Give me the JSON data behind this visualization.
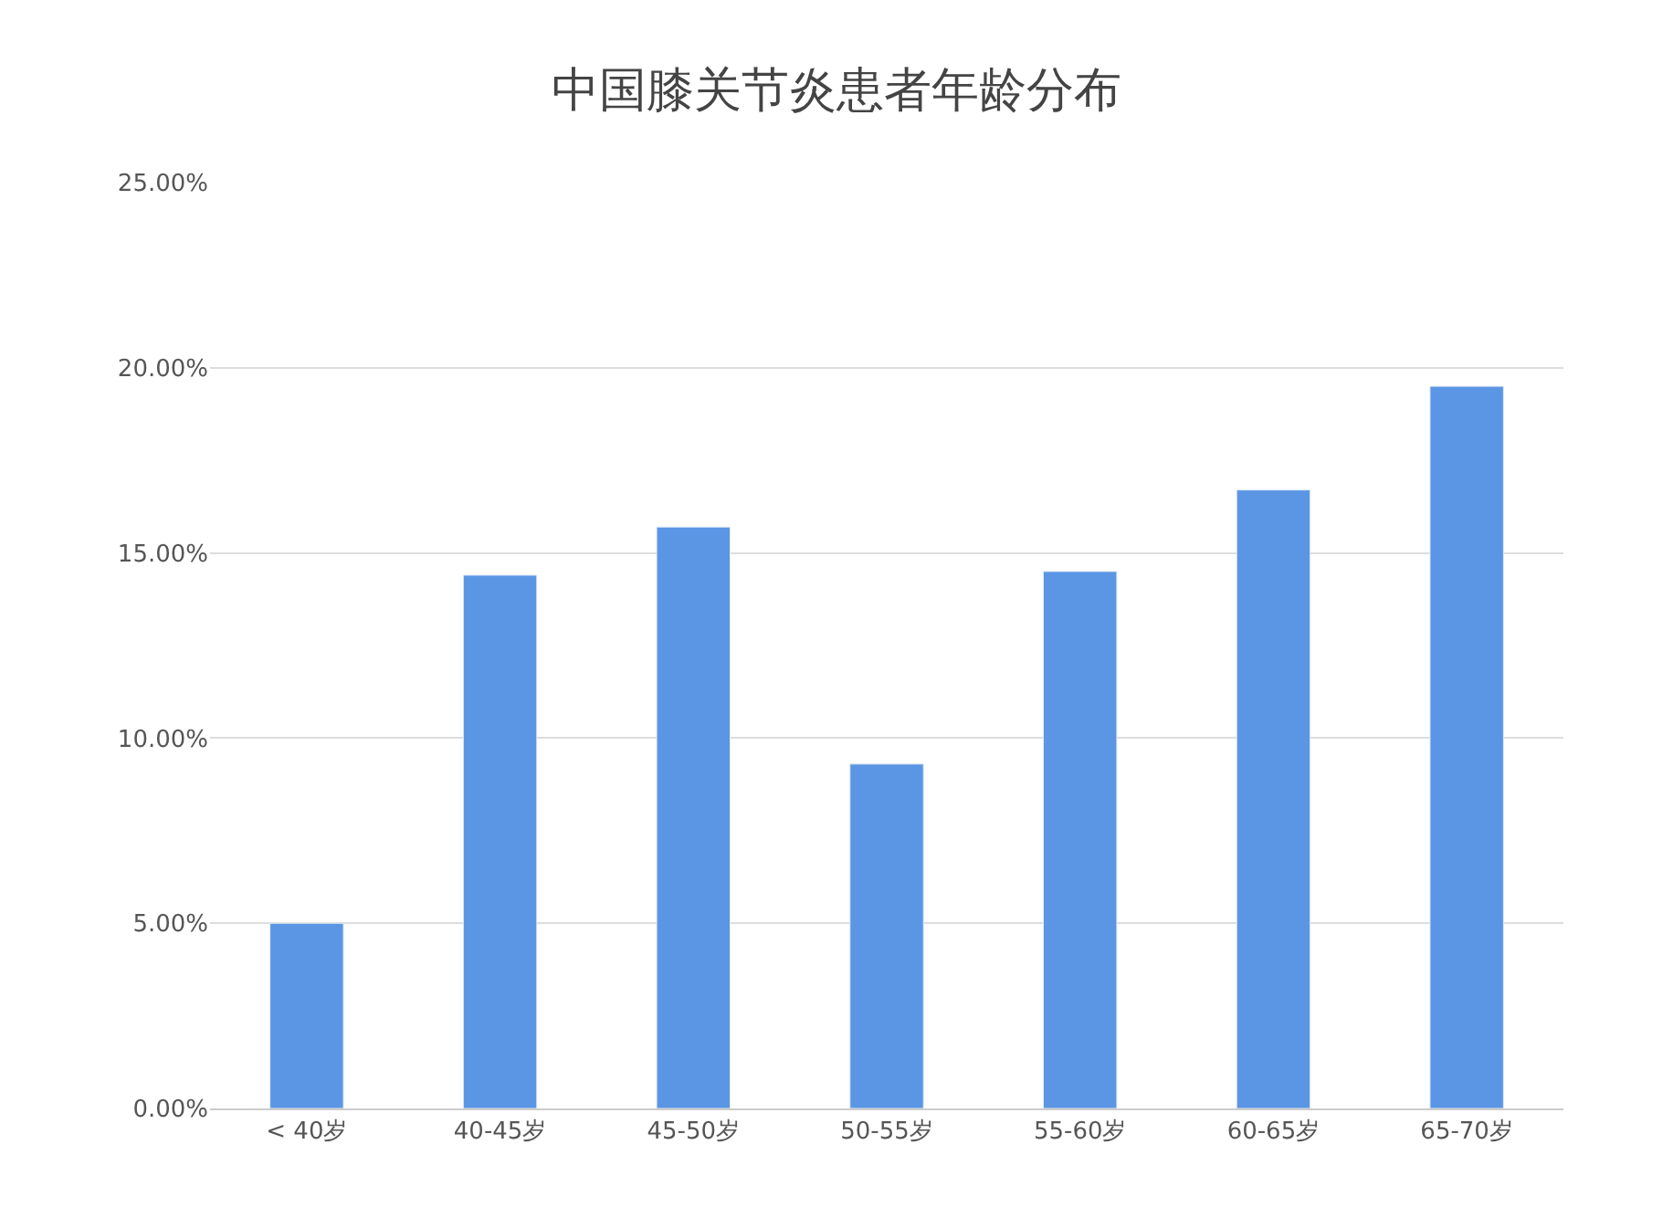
{
  "chart_data": {
    "type": "bar",
    "title": "中国膝关节炎患者年龄分布",
    "categories": [
      "< 40岁",
      "40-45岁",
      "45-50岁",
      "50-55岁",
      "55-60岁",
      "60-65岁",
      "65-70岁"
    ],
    "values": [
      5.0,
      14.4,
      15.7,
      9.3,
      14.5,
      16.7,
      19.5
    ],
    "color": "#5b96e4",
    "ylim": [
      0,
      25
    ],
    "yticks": [
      {
        "value": 0,
        "label": "0.00%"
      },
      {
        "value": 5,
        "label": "5.00%"
      },
      {
        "value": 10,
        "label": "10.00%"
      },
      {
        "value": 15,
        "label": "15.00%"
      },
      {
        "value": 20,
        "label": "20.00%"
      },
      {
        "value": 25,
        "label": "25.00%"
      }
    ],
    "grid": "y"
  }
}
